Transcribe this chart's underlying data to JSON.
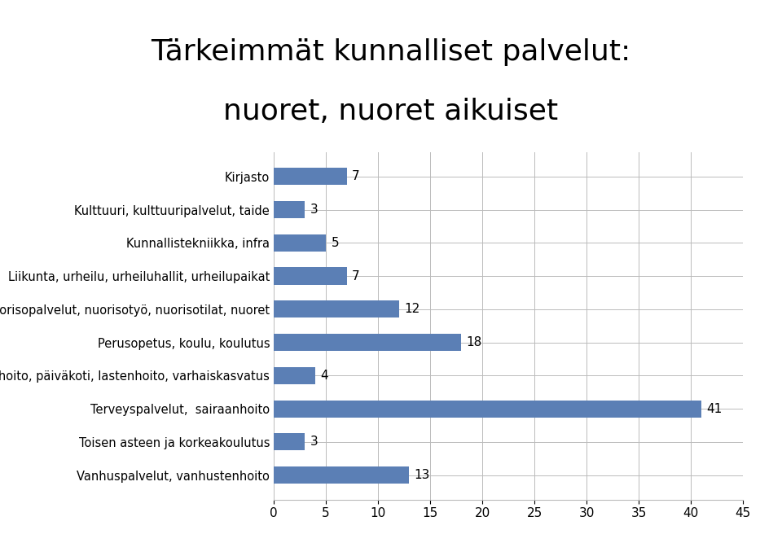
{
  "title_line1": "Tärkeimmät kunnalliset palvelut:",
  "title_line2": "nuoret, nuoret aikuiset",
  "categories": [
    "Vanhuspalvelut, vanhustenhoito",
    "Toisen asteen ja korkeakoulutus",
    "Terveyspalvelut,  sairaanhoito",
    "Päivähoito, päiväkoti, lastenhoito, varhaiskasvatus",
    "Perusopetus, koulu, koulutus",
    "Nuorisopalvelut, nuorisotyö, nuorisotilat, nuoret",
    "Liikunta, urheilu, urheiluhallit, urheilupaikat",
    "Kunnallistekniikka, infra",
    "Kulttuuri, kulttuuripalvelut, taide",
    "Kirjasto"
  ],
  "values": [
    13,
    3,
    41,
    4,
    18,
    12,
    7,
    5,
    3,
    7
  ],
  "bar_color": "#5b7fb5",
  "xlim": [
    0,
    45
  ],
  "xticks": [
    0,
    5,
    10,
    15,
    20,
    25,
    30,
    35,
    40,
    45
  ],
  "title_fontsize": 26,
  "label_fontsize": 10.5,
  "tick_fontsize": 11,
  "value_fontsize": 11,
  "background_color": "#ffffff",
  "grid_color": "#bbbbbb"
}
